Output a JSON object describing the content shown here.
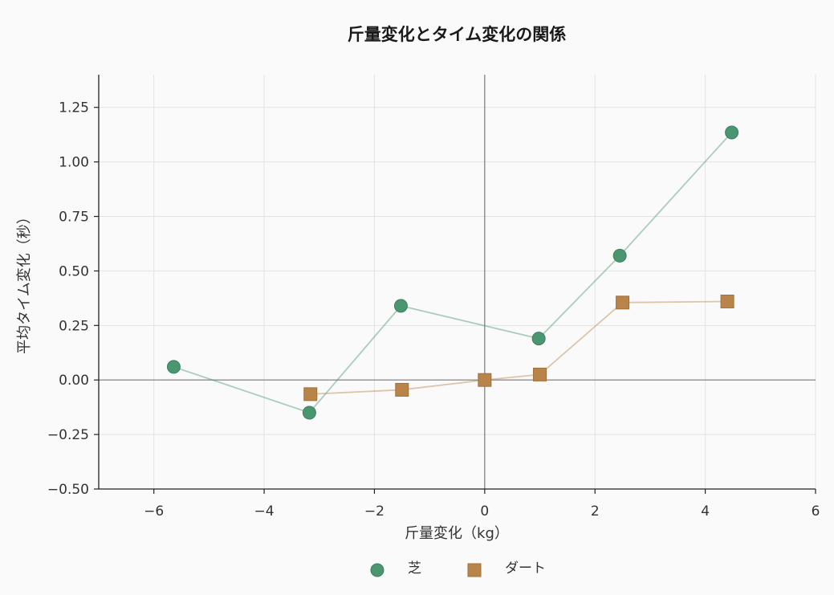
{
  "chart_data": {
    "type": "line",
    "title": "斤量変化とタイム変化の関係",
    "xlabel": "斤量変化（kg）",
    "ylabel": "平均タイム変化（秒）",
    "xlim": [
      -7,
      6
    ],
    "ylim": [
      -0.5,
      1.4
    ],
    "xticks": [
      -6,
      -4,
      -2,
      0,
      2,
      4,
      6
    ],
    "xtick_labels": [
      "−6",
      "−4",
      "−2",
      "0",
      "2",
      "4",
      "6"
    ],
    "yticks": [
      -0.5,
      -0.25,
      0,
      0.25,
      0.5,
      0.75,
      1.0,
      1.25
    ],
    "ytick_labels": [
      "−0.50",
      "−0.25",
      "0.00",
      "0.25",
      "0.50",
      "0.75",
      "1.00",
      "1.25"
    ],
    "grid": true,
    "reference_lines": {
      "x": 0,
      "y": 0
    },
    "legend_position": "bottom-center",
    "series": [
      {
        "name": "芝",
        "marker": "circle",
        "color": "#4a9670",
        "points": [
          {
            "x": -5.64,
            "y": 0.06
          },
          {
            "x": -3.18,
            "y": -0.15
          },
          {
            "x": -1.52,
            "y": 0.34
          },
          {
            "x": 0.98,
            "y": 0.19
          },
          {
            "x": 2.45,
            "y": 0.57
          },
          {
            "x": 4.48,
            "y": 1.135
          }
        ]
      },
      {
        "name": "ダート",
        "marker": "square",
        "color": "#b8844a",
        "points": [
          {
            "x": -3.16,
            "y": -0.065
          },
          {
            "x": -1.5,
            "y": -0.045
          },
          {
            "x": 0.0,
            "y": 0.0
          },
          {
            "x": 1.0,
            "y": 0.025
          },
          {
            "x": 2.5,
            "y": 0.355
          },
          {
            "x": 4.4,
            "y": 0.36
          }
        ]
      }
    ]
  }
}
